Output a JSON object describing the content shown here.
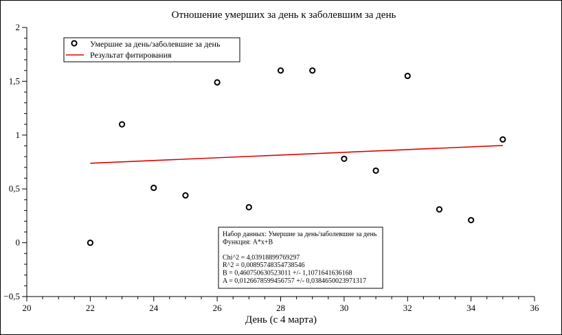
{
  "chart_data": {
    "type": "scatter",
    "title": "Отношение умерших за день к заболевшим за день",
    "xlabel": "День (с 4 марта)",
    "ylabel": "",
    "xlim": [
      20,
      36
    ],
    "ylim": [
      -0.5,
      2
    ],
    "x_ticks": [
      20,
      22,
      24,
      26,
      28,
      30,
      32,
      34,
      36
    ],
    "x_tick_labels": [
      "20",
      "22",
      "24",
      "26",
      "28",
      "30",
      "32",
      "34",
      "36"
    ],
    "y_ticks": [
      -0.5,
      0,
      0.5,
      1,
      1.5,
      2
    ],
    "y_tick_labels": [
      "−0,5",
      "0",
      "0,5",
      "1",
      "1,5",
      "2"
    ],
    "grid": false,
    "legend_position": "top-left",
    "series": [
      {
        "name": "Умершие за день/заболевшие за день",
        "kind": "scatter",
        "marker": "open-circle",
        "color": "#000000",
        "x": [
          22,
          23,
          24,
          25,
          26,
          27,
          28,
          29,
          30,
          31,
          32,
          33,
          34,
          35
        ],
        "y": [
          0.0,
          1.1,
          0.51,
          0.44,
          1.49,
          0.33,
          1.6,
          1.6,
          0.78,
          0.67,
          1.55,
          0.31,
          0.21,
          0.96
        ]
      },
      {
        "name": "Результат фитирования",
        "kind": "line",
        "color": "#e00000",
        "x": [
          22,
          35
        ],
        "y": [
          0.7386,
          0.9034
        ]
      }
    ],
    "annotation": {
      "lines": [
        "Набор данных: Умершие за день/заболевшие за день",
        "Функция: A*x+B",
        "",
        "Chi^2 = 4,03918899769297",
        "R^2 = 0,00895748354738546",
        "B = 0,460750630523011 +/- 1,1071641636168",
        "A = 0,0126678599456757 +/- 0,0384650023971317"
      ]
    }
  }
}
